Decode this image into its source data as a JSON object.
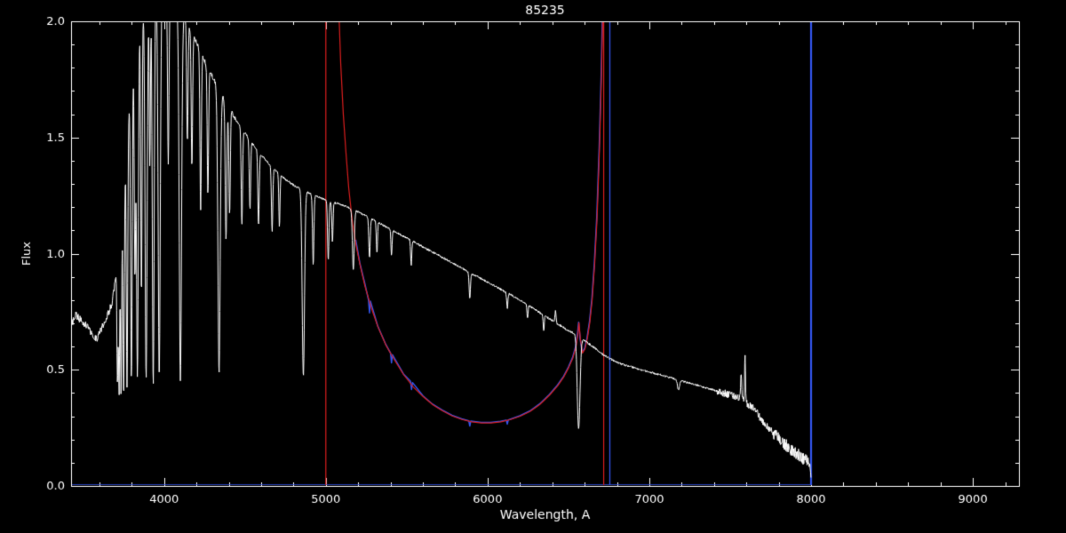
{
  "page": {
    "title": "85235"
  },
  "chart_data": {
    "type": "line",
    "title": "85235",
    "xlabel": "Wavelength, A",
    "ylabel": "Flux",
    "xlim": [
      3425,
      9285
    ],
    "ylim": [
      0.0,
      2.0
    ],
    "grid": false,
    "legend": "none",
    "x_major_ticks": [
      4000,
      5000,
      6000,
      7000,
      8000,
      9000
    ],
    "x_tick_labels": [
      "4000",
      "5000",
      "6000",
      "7000",
      "8000",
      "9000"
    ],
    "x_minor_step": 200,
    "y_major_ticks": [
      0.0,
      0.5,
      1.0,
      1.5,
      2.0
    ],
    "y_tick_labels": [
      "0.0",
      "0.5",
      "1.0",
      "1.5",
      "2.0"
    ],
    "y_minor_step": 0.1,
    "colors": {
      "background": "#000000",
      "axis": "#ffffff",
      "spectrum": "#ffffff",
      "response_red": "#d81e1e",
      "response_blue": "#3355ee"
    },
    "series": [
      {
        "name": "response-curve-blue",
        "kind": "segments",
        "color": "#3355ee",
        "width": 1.4,
        "segment_widths": [
          1.2,
          1.5,
          1.3,
          2.2
        ],
        "segments": [
          [
            [
              3430,
              0.004
            ],
            [
              8000,
              0.004
            ]
          ],
          [
            [
              5185,
              1.06
            ],
            [
              5210,
              0.96
            ],
            [
              5240,
              0.875
            ],
            [
              5264,
              0.8
            ],
            [
              5270,
              0.745
            ],
            [
              5276,
              0.795
            ],
            [
              5320,
              0.69
            ],
            [
              5370,
              0.61
            ],
            [
              5400,
              0.572
            ],
            [
              5406,
              0.53
            ],
            [
              5412,
              0.565
            ],
            [
              5480,
              0.482
            ],
            [
              5524,
              0.45
            ],
            [
              5530,
              0.415
            ],
            [
              5536,
              0.445
            ],
            [
              5600,
              0.388
            ],
            [
              5660,
              0.352
            ],
            [
              5720,
              0.326
            ],
            [
              5780,
              0.304
            ],
            [
              5840,
              0.289
            ],
            [
              5884,
              0.28
            ],
            [
              5890,
              0.258
            ],
            [
              5896,
              0.279
            ],
            [
              5960,
              0.273
            ],
            [
              6020,
              0.273
            ],
            [
              6080,
              0.278
            ],
            [
              6116,
              0.283
            ],
            [
              6122,
              0.266
            ],
            [
              6128,
              0.284
            ],
            [
              6200,
              0.302
            ],
            [
              6260,
              0.322
            ],
            [
              6320,
              0.352
            ],
            [
              6380,
              0.392
            ],
            [
              6430,
              0.432
            ],
            [
              6470,
              0.472
            ],
            [
              6500,
              0.512
            ],
            [
              6525,
              0.552
            ],
            [
              6545,
              0.602
            ],
            [
              6556,
              0.655
            ],
            [
              6563,
              0.705
            ],
            [
              6572,
              0.635
            ],
            [
              6585,
              0.575
            ],
            [
              6600,
              0.592
            ],
            [
              6615,
              0.637
            ],
            [
              6630,
              0.707
            ],
            [
              6645,
              0.807
            ],
            [
              6660,
              0.957
            ],
            [
              6675,
              1.157
            ],
            [
              6690,
              1.457
            ],
            [
              6702,
              1.76
            ],
            [
              6712,
              2.1
            ]
          ],
          [
            [
              6756,
              0.0
            ],
            [
              6756,
              2.1
            ]
          ],
          [
            [
              8000,
              0.0
            ],
            [
              8000,
              2.1
            ]
          ]
        ]
      },
      {
        "name": "response-curve-red",
        "kind": "segments",
        "color": "#d81e1e",
        "width": 1.2,
        "segment_widths": [
          1.2,
          1.2,
          1.2
        ],
        "segments": [
          [
            [
              5000,
              0.0
            ],
            [
              5000,
              2.1
            ]
          ],
          [
            [
              5078,
              2.1
            ],
            [
              5092,
              1.82
            ],
            [
              5108,
              1.6
            ],
            [
              5124,
              1.44
            ],
            [
              5142,
              1.28
            ],
            [
              5162,
              1.15
            ],
            [
              5186,
              1.04
            ],
            [
              5212,
              0.95
            ],
            [
              5242,
              0.86
            ],
            [
              5282,
              0.765
            ],
            [
              5322,
              0.685
            ],
            [
              5372,
              0.605
            ],
            [
              5422,
              0.545
            ],
            [
              5482,
              0.478
            ],
            [
              5542,
              0.425
            ],
            [
              5602,
              0.384
            ],
            [
              5662,
              0.349
            ],
            [
              5722,
              0.323
            ],
            [
              5782,
              0.301
            ],
            [
              5842,
              0.286
            ],
            [
              5902,
              0.276
            ],
            [
              5962,
              0.271
            ],
            [
              6022,
              0.271
            ],
            [
              6082,
              0.276
            ],
            [
              6142,
              0.286
            ],
            [
              6202,
              0.3
            ],
            [
              6262,
              0.32
            ],
            [
              6322,
              0.35
            ],
            [
              6382,
              0.39
            ],
            [
              6432,
              0.43
            ],
            [
              6472,
              0.47
            ],
            [
              6502,
              0.51
            ],
            [
              6527,
              0.55
            ],
            [
              6547,
              0.6
            ],
            [
              6558,
              0.652
            ],
            [
              6565,
              0.702
            ],
            [
              6574,
              0.632
            ],
            [
              6587,
              0.572
            ],
            [
              6602,
              0.589
            ],
            [
              6617,
              0.634
            ],
            [
              6632,
              0.704
            ],
            [
              6647,
              0.804
            ],
            [
              6662,
              0.954
            ],
            [
              6677,
              1.154
            ],
            [
              6692,
              1.454
            ],
            [
              6704,
              1.75
            ],
            [
              6714,
              2.1
            ]
          ],
          [
            [
              6718,
              0.0
            ],
            [
              6718,
              2.1
            ]
          ]
        ]
      },
      {
        "name": "stellar-spectrum-white",
        "kind": "spectrum",
        "color": "#ffffff",
        "width": 1.0,
        "range": [
          3432,
          8000
        ],
        "continuum": [
          [
            3430,
            0.7
          ],
          [
            3455,
            0.735
          ],
          [
            3475,
            0.72
          ],
          [
            3500,
            0.705
          ],
          [
            3530,
            0.685
          ],
          [
            3560,
            0.645
          ],
          [
            3585,
            0.635
          ],
          [
            3610,
            0.675
          ],
          [
            3640,
            0.72
          ],
          [
            3662,
            0.755
          ],
          [
            3680,
            0.79
          ],
          [
            3700,
            0.9
          ],
          [
            3718,
            1.02
          ],
          [
            3736,
            1.16
          ],
          [
            3755,
            1.34
          ],
          [
            3775,
            1.55
          ],
          [
            3795,
            1.74
          ],
          [
            3815,
            1.88
          ],
          [
            3840,
            1.99
          ],
          [
            3865,
            2.06
          ],
          [
            3900,
            2.1
          ],
          [
            3950,
            2.12
          ],
          [
            4000,
            2.12
          ],
          [
            4050,
            2.09
          ],
          [
            4100,
            2.05
          ],
          [
            4150,
            1.99
          ],
          [
            4200,
            1.91
          ],
          [
            4250,
            1.83
          ],
          [
            4300,
            1.76
          ],
          [
            4350,
            1.69
          ],
          [
            4400,
            1.63
          ],
          [
            4450,
            1.57
          ],
          [
            4500,
            1.52
          ],
          [
            4550,
            1.47
          ],
          [
            4600,
            1.425
          ],
          [
            4650,
            1.385
          ],
          [
            4700,
            1.35
          ],
          [
            4750,
            1.32
          ],
          [
            4800,
            1.295
          ],
          [
            4850,
            1.275
          ],
          [
            4900,
            1.26
          ],
          [
            4950,
            1.245
          ],
          [
            5000,
            1.23
          ],
          [
            5050,
            1.22
          ],
          [
            5100,
            1.21
          ],
          [
            5150,
            1.195
          ],
          [
            5200,
            1.18
          ],
          [
            5250,
            1.162
          ],
          [
            5300,
            1.143
          ],
          [
            5350,
            1.124
          ],
          [
            5400,
            1.105
          ],
          [
            5450,
            1.086
          ],
          [
            5500,
            1.067
          ],
          [
            5550,
            1.048
          ],
          [
            5600,
            1.029
          ],
          [
            5650,
            1.01
          ],
          [
            5700,
            0.991
          ],
          [
            5750,
            0.972
          ],
          [
            5800,
            0.953
          ],
          [
            5850,
            0.934
          ],
          [
            5900,
            0.915
          ],
          [
            5950,
            0.896
          ],
          [
            6000,
            0.877
          ],
          [
            6050,
            0.858
          ],
          [
            6100,
            0.839
          ],
          [
            6150,
            0.82
          ],
          [
            6200,
            0.8
          ],
          [
            6250,
            0.778
          ],
          [
            6300,
            0.756
          ],
          [
            6350,
            0.734
          ],
          [
            6400,
            0.712
          ],
          [
            6450,
            0.69
          ],
          [
            6500,
            0.668
          ],
          [
            6550,
            0.652
          ],
          [
            6600,
            0.625
          ],
          [
            6650,
            0.6
          ],
          [
            6700,
            0.572
          ],
          [
            6750,
            0.55
          ],
          [
            6800,
            0.532
          ],
          [
            6850,
            0.52
          ],
          [
            6900,
            0.51
          ],
          [
            6950,
            0.5
          ],
          [
            7000,
            0.49
          ],
          [
            7050,
            0.482
          ],
          [
            7100,
            0.472
          ],
          [
            7150,
            0.462
          ],
          [
            7200,
            0.452
          ],
          [
            7250,
            0.442
          ],
          [
            7300,
            0.432
          ],
          [
            7350,
            0.422
          ],
          [
            7400,
            0.412
          ],
          [
            7450,
            0.402
          ],
          [
            7500,
            0.392
          ],
          [
            7550,
            0.378
          ],
          [
            7580,
            0.368
          ],
          [
            7610,
            0.352
          ],
          [
            7640,
            0.338
          ],
          [
            7670,
            0.31
          ],
          [
            7700,
            0.278
          ],
          [
            7740,
            0.246
          ],
          [
            7780,
            0.216
          ],
          [
            7820,
            0.19
          ],
          [
            7860,
            0.166
          ],
          [
            7900,
            0.146
          ],
          [
            7940,
            0.124
          ],
          [
            7970,
            0.106
          ],
          [
            7988,
            0.09
          ],
          [
            8000,
            0.04
          ]
        ],
        "absorption_lines": [
          [
            3712,
            0.55,
            5
          ],
          [
            3722,
            0.62,
            5
          ],
          [
            3734,
            0.66,
            5
          ],
          [
            3750,
            0.7,
            6
          ],
          [
            3771,
            0.72,
            6
          ],
          [
            3798,
            0.74,
            7
          ],
          [
            3820,
            0.52,
            6
          ],
          [
            3835,
            0.76,
            8
          ],
          [
            3860,
            0.6,
            6
          ],
          [
            3889,
            0.78,
            9
          ],
          [
            3912,
            0.35,
            5
          ],
          [
            3933,
            0.8,
            8
          ],
          [
            3970,
            0.78,
            9
          ],
          [
            4026,
            0.34,
            6
          ],
          [
            4101,
            0.78,
            10
          ],
          [
            4144,
            0.26,
            6
          ],
          [
            4172,
            0.3,
            6
          ],
          [
            4226,
            0.36,
            6
          ],
          [
            4271,
            0.3,
            6
          ],
          [
            4340,
            0.71,
            10
          ],
          [
            4383,
            0.36,
            7
          ],
          [
            4405,
            0.28,
            6
          ],
          [
            4481,
            0.27,
            6
          ],
          [
            4531,
            0.2,
            6
          ],
          [
            4584,
            0.22,
            6
          ],
          [
            4668,
            0.2,
            6
          ],
          [
            4713,
            0.17,
            5
          ],
          [
            4861,
            0.63,
            10
          ],
          [
            4922,
            0.24,
            6
          ],
          [
            5015,
            0.21,
            6
          ],
          [
            5041,
            0.14,
            5
          ],
          [
            5170,
            0.22,
            8
          ],
          [
            5270,
            0.15,
            6
          ],
          [
            5316,
            0.12,
            5
          ],
          [
            5406,
            0.1,
            5
          ],
          [
            5528,
            0.1,
            5
          ],
          [
            5890,
            0.12,
            6
          ],
          [
            6122,
            0.08,
            5
          ],
          [
            6247,
            0.07,
            5
          ],
          [
            6347,
            0.09,
            5
          ],
          [
            6563,
            0.62,
            12
          ],
          [
            7180,
            0.1,
            9
          ]
        ],
        "emission_spikes": [
          [
            6420,
            0.05,
            5
          ],
          [
            7568,
            0.12,
            5
          ],
          [
            7592,
            0.2,
            4
          ]
        ],
        "noise": [
          [
            3425,
            3695,
            0.016
          ],
          [
            3695,
            4450,
            0.009
          ],
          [
            4450,
            7420,
            0.0045
          ],
          [
            7420,
            7760,
            0.016
          ],
          [
            7760,
            8005,
            0.028
          ]
        ]
      }
    ]
  }
}
